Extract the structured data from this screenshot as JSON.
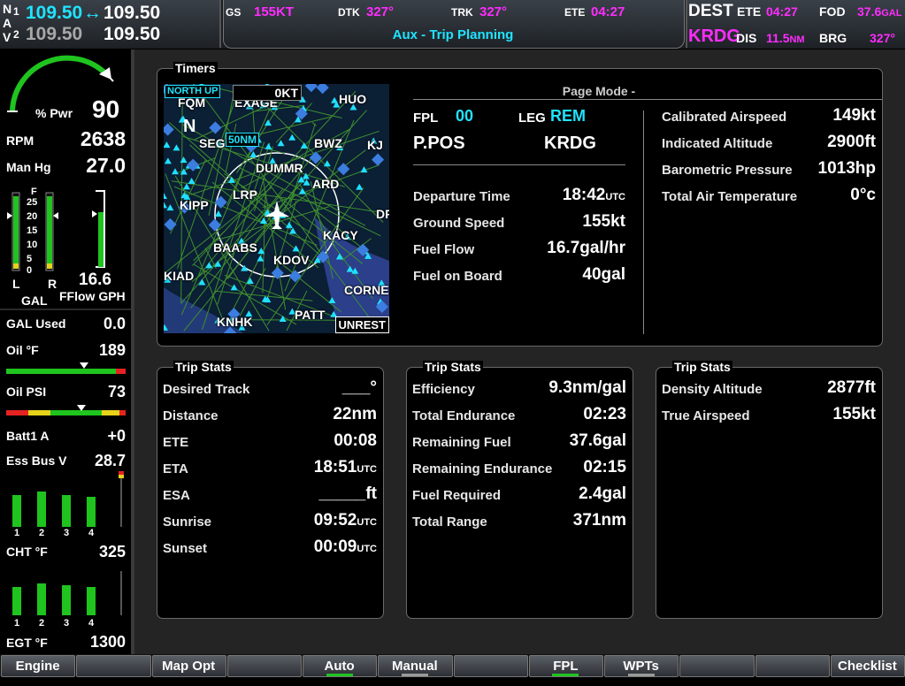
{
  "nav": {
    "letters": [
      "N",
      "A",
      "V"
    ],
    "nav1": {
      "index": "1",
      "active": "109.50",
      "standby": "109.50"
    },
    "nav2": {
      "index": "2",
      "active": "109.50",
      "standby": "109.50"
    },
    "swap": "↔"
  },
  "top_bar": {
    "fields": [
      {
        "label": "GS",
        "value": "155KT"
      },
      {
        "label": "DTK",
        "value": "327°"
      },
      {
        "label": "TRK",
        "value": "327°"
      },
      {
        "label": "ETE",
        "value": "04:27"
      }
    ],
    "page_title": "Aux - Trip Planning"
  },
  "destination": {
    "label": "DEST",
    "id": "KRDG",
    "ete": {
      "label": "ETE",
      "value": "04:27"
    },
    "fod": {
      "label": "FOD",
      "value": "37.6",
      "unit": "GAL"
    },
    "dis": {
      "label": "DIS",
      "value": "11.5",
      "unit": "NM"
    },
    "brg": {
      "label": "BRG",
      "value": "327°"
    }
  },
  "engine": {
    "power": {
      "label": "% Pwr",
      "value": "90"
    },
    "readouts": [
      {
        "label": "RPM",
        "value": "2638"
      },
      {
        "label": "Man Hg",
        "value": "27.0"
      },
      {
        "label": "GAL Used",
        "value": "0.0"
      },
      {
        "label": "Oil °F",
        "value": "189"
      },
      {
        "label": "Oil PSI",
        "value": "73"
      },
      {
        "label": "Batt1 A",
        "value": "+0"
      },
      {
        "label": "Ess Bus V",
        "value": "28.7"
      },
      {
        "label": "CHT °F",
        "value": "325"
      },
      {
        "label": "EGT °F",
        "value": "1300"
      }
    ],
    "fuel": {
      "scale": [
        "F",
        "25",
        "20",
        "15",
        "10",
        "5",
        "0"
      ],
      "left": "L",
      "right": "R",
      "unit": "GAL",
      "fflow_label": "FFlow GPH",
      "fflow_value": "16.6"
    },
    "cylinders": [
      "1",
      "2",
      "3",
      "4"
    ]
  },
  "map": {
    "orientation": "NORTH UP",
    "wind": "0KT",
    "range": "50NM",
    "north": "N",
    "mode": "UNREST",
    "labels": [
      "FQM",
      "EXAGE",
      "HUO",
      "SEG",
      "BWZ",
      "KJ",
      "DUMMR",
      "LRP",
      "ARD",
      "KIPP",
      "KACY",
      "DR",
      "BAABS",
      "KDOV",
      "KIAD",
      "CORNE",
      "KNHK",
      "PATT"
    ]
  },
  "timers": {
    "title": "Timers",
    "page_mode": "Page Mode -",
    "fpl": {
      "label": "FPL",
      "value": "00"
    },
    "leg": {
      "label": "LEG",
      "value": "REM"
    },
    "from": "P.POS",
    "to": "KRDG",
    "rows": [
      {
        "label": "Departure Time",
        "value": "18:42",
        "unit": "UTC"
      },
      {
        "label": "Ground Speed",
        "value": "155kt"
      },
      {
        "label": "Fuel Flow",
        "value": "16.7gal/hr"
      },
      {
        "label": "Fuel on Board",
        "value": "40gal"
      }
    ],
    "air_data": [
      {
        "label": "Calibrated Airspeed",
        "value": "149kt"
      },
      {
        "label": "Indicated Altitude",
        "value": "2900ft"
      },
      {
        "label": "Barometric Pressure",
        "value": "1013hp"
      },
      {
        "label": "Total Air Temperature",
        "value": "0°c"
      }
    ]
  },
  "trip_stats": [
    {
      "title": "Trip Stats",
      "rows": [
        {
          "label": "Desired Track",
          "value": "___°"
        },
        {
          "label": "Distance",
          "value": "22nm"
        },
        {
          "label": "ETE",
          "value": "00:08"
        },
        {
          "label": "ETA",
          "value": "18:51",
          "unit": "UTC"
        },
        {
          "label": "ESA",
          "value": "_____ft"
        },
        {
          "label": "Sunrise",
          "value": "09:52",
          "unit": "UTC"
        },
        {
          "label": "Sunset",
          "value": "00:09",
          "unit": "UTC"
        }
      ]
    },
    {
      "title": "Trip Stats",
      "rows": [
        {
          "label": "Efficiency",
          "value": "9.3nm/gal"
        },
        {
          "label": "Total Endurance",
          "value": "02:23"
        },
        {
          "label": "Remaining Fuel",
          "value": "37.6gal"
        },
        {
          "label": "Remaining Endurance",
          "value": "02:15"
        },
        {
          "label": "Fuel Required",
          "value": "2.4gal"
        },
        {
          "label": "Total Range",
          "value": "371nm"
        }
      ]
    },
    {
      "title": "Trip Stats",
      "rows": [
        {
          "label": "Density Altitude",
          "value": "2877ft"
        },
        {
          "label": "True Airspeed",
          "value": "155kt"
        }
      ]
    }
  ],
  "softkeys": [
    "Engine",
    "Map Opt",
    "Auto",
    "Manual",
    "FPL",
    "WPTs",
    "Checklist"
  ]
}
